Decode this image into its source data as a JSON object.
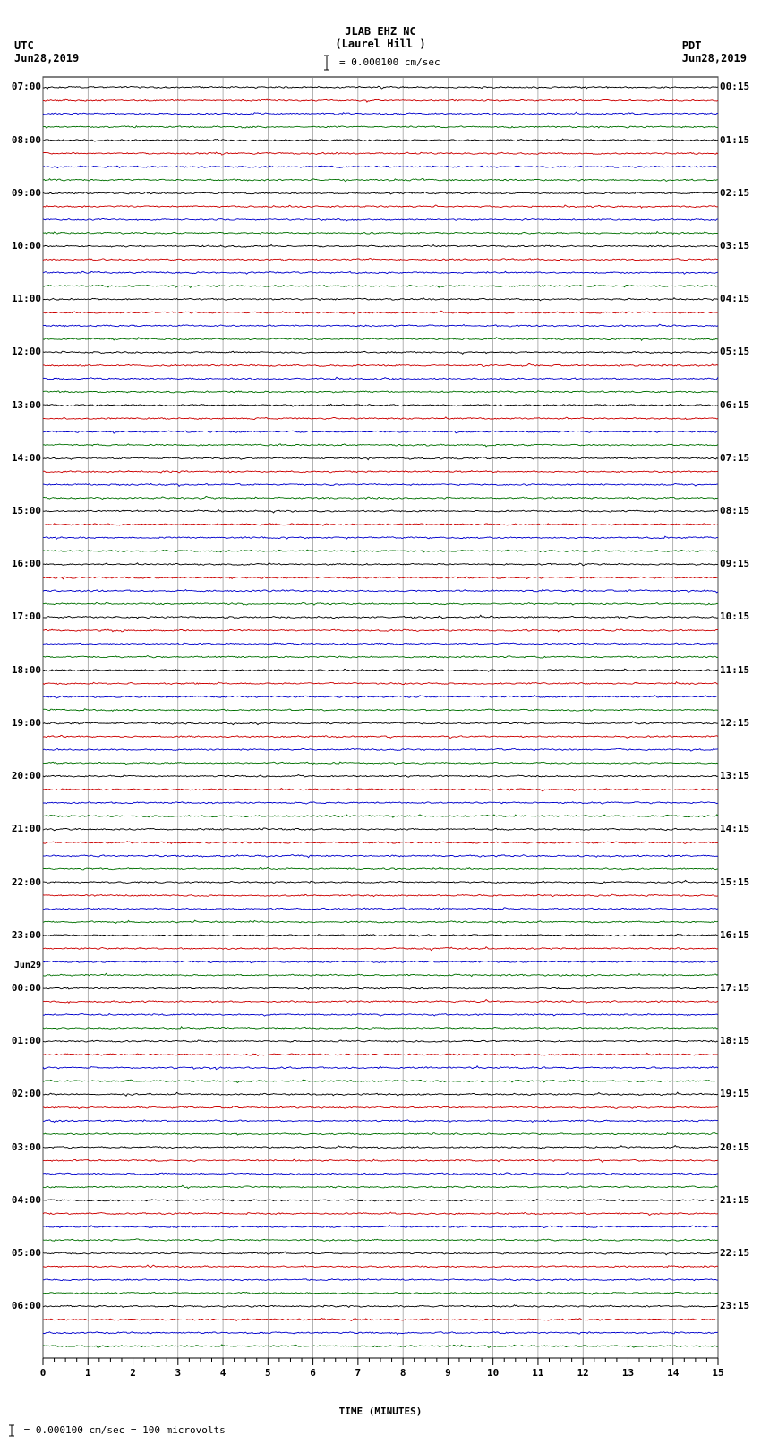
{
  "header": {
    "station": "JLAB EHZ NC",
    "location": "(Laurel Hill )",
    "scale_text": "= 0.000100 cm/sec"
  },
  "tz_left": {
    "name": "UTC",
    "date": "Jun28,2019"
  },
  "tz_right": {
    "name": "PDT",
    "date": "Jun28,2019"
  },
  "footer": "= 0.000100 cm/sec =    100 microvolts",
  "xaxis": {
    "label": "TIME (MINUTES)",
    "min": 0,
    "max": 15,
    "ticks": [
      0,
      1,
      2,
      3,
      4,
      5,
      6,
      7,
      8,
      9,
      10,
      11,
      12,
      13,
      14,
      15
    ]
  },
  "plot": {
    "background_color": "#ffffff",
    "gridline_color": "#808080",
    "trace_colors": [
      "#000000",
      "#cc0000",
      "#0000cc",
      "#007000"
    ],
    "line_width": 0.9,
    "rows": 96,
    "amplitude": 2.6,
    "grid_x_positions": [
      0,
      1,
      2,
      3,
      4,
      5,
      6,
      7,
      8,
      9,
      10,
      11,
      12,
      13,
      14,
      15
    ]
  },
  "left_labels": [
    {
      "row": 0,
      "text": "07:00"
    },
    {
      "row": 4,
      "text": "08:00"
    },
    {
      "row": 8,
      "text": "09:00"
    },
    {
      "row": 12,
      "text": "10:00"
    },
    {
      "row": 16,
      "text": "11:00"
    },
    {
      "row": 20,
      "text": "12:00"
    },
    {
      "row": 24,
      "text": "13:00"
    },
    {
      "row": 28,
      "text": "14:00"
    },
    {
      "row": 32,
      "text": "15:00"
    },
    {
      "row": 36,
      "text": "16:00"
    },
    {
      "row": 40,
      "text": "17:00"
    },
    {
      "row": 44,
      "text": "18:00"
    },
    {
      "row": 48,
      "text": "19:00"
    },
    {
      "row": 52,
      "text": "20:00"
    },
    {
      "row": 56,
      "text": "21:00"
    },
    {
      "row": 60,
      "text": "22:00"
    },
    {
      "row": 64,
      "text": "23:00"
    },
    {
      "row": 67,
      "text": "Jun29",
      "small": true
    },
    {
      "row": 68,
      "text": "00:00"
    },
    {
      "row": 72,
      "text": "01:00"
    },
    {
      "row": 76,
      "text": "02:00"
    },
    {
      "row": 80,
      "text": "03:00"
    },
    {
      "row": 84,
      "text": "04:00"
    },
    {
      "row": 88,
      "text": "05:00"
    },
    {
      "row": 92,
      "text": "06:00"
    }
  ],
  "right_labels": [
    {
      "row": 0,
      "text": "00:15"
    },
    {
      "row": 4,
      "text": "01:15"
    },
    {
      "row": 8,
      "text": "02:15"
    },
    {
      "row": 12,
      "text": "03:15"
    },
    {
      "row": 16,
      "text": "04:15"
    },
    {
      "row": 20,
      "text": "05:15"
    },
    {
      "row": 24,
      "text": "06:15"
    },
    {
      "row": 28,
      "text": "07:15"
    },
    {
      "row": 32,
      "text": "08:15"
    },
    {
      "row": 36,
      "text": "09:15"
    },
    {
      "row": 40,
      "text": "10:15"
    },
    {
      "row": 44,
      "text": "11:15"
    },
    {
      "row": 48,
      "text": "12:15"
    },
    {
      "row": 52,
      "text": "13:15"
    },
    {
      "row": 56,
      "text": "14:15"
    },
    {
      "row": 60,
      "text": "15:15"
    },
    {
      "row": 64,
      "text": "16:15"
    },
    {
      "row": 68,
      "text": "17:15"
    },
    {
      "row": 72,
      "text": "18:15"
    },
    {
      "row": 76,
      "text": "19:15"
    },
    {
      "row": 80,
      "text": "20:15"
    },
    {
      "row": 84,
      "text": "21:15"
    },
    {
      "row": 88,
      "text": "22:15"
    },
    {
      "row": 92,
      "text": "23:15"
    }
  ]
}
